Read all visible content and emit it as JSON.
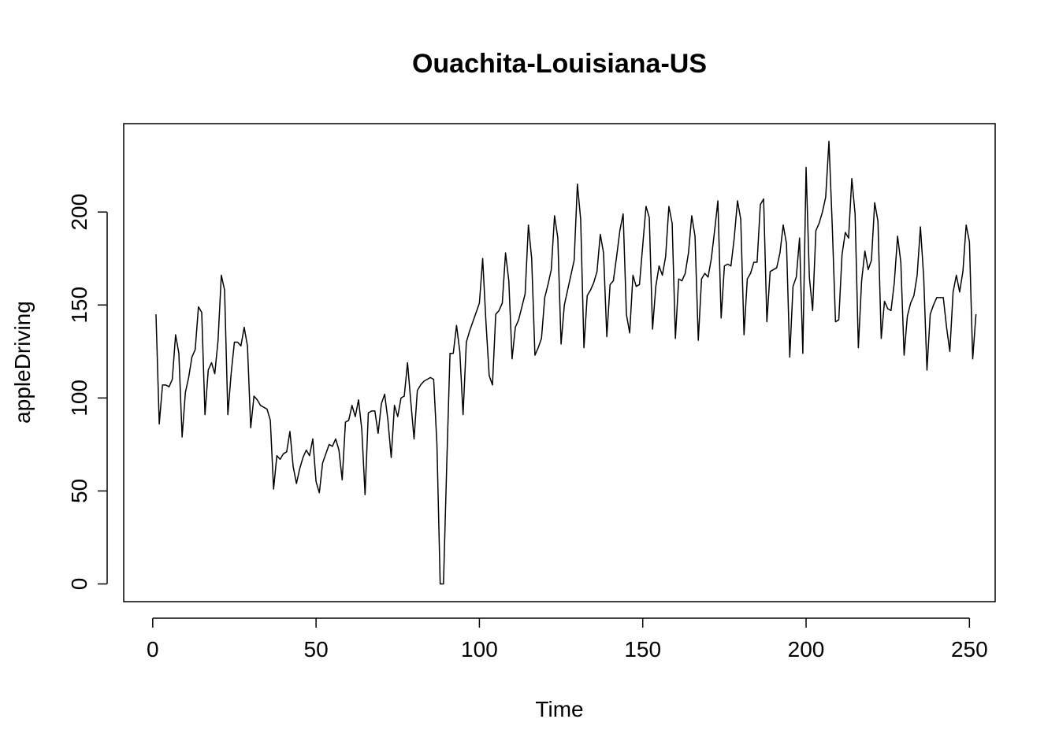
{
  "chart_data": {
    "type": "line",
    "title": "Ouachita-Louisiana-US",
    "xlabel": "Time",
    "ylabel": "appleDriving",
    "xlim": [
      1,
      248
    ],
    "ylim": [
      0,
      238
    ],
    "x_ticks": [
      "0",
      "50",
      "100",
      "150",
      "200",
      "250"
    ],
    "y_ticks": [
      "0",
      "50",
      "100",
      "150",
      "200"
    ],
    "grid": false,
    "legend": "none",
    "line_color": "#000000",
    "series": [
      {
        "values": [
          145,
          86,
          107,
          107,
          106,
          110,
          134,
          124,
          79,
          103,
          111,
          122,
          126,
          149,
          146,
          91,
          115,
          119,
          113,
          131,
          166,
          158,
          91,
          113,
          130,
          130,
          128,
          138,
          128,
          84,
          101,
          99,
          96,
          95,
          94,
          88,
          51,
          69,
          67,
          70,
          71,
          82,
          63,
          54,
          62,
          68,
          72,
          69,
          78,
          55,
          49,
          65,
          70,
          75,
          74,
          78,
          72,
          56,
          87,
          88,
          96,
          90,
          99,
          83,
          48,
          92,
          93,
          93,
          81,
          97,
          102,
          88,
          68,
          96,
          90,
          100,
          101,
          119,
          98,
          78,
          104,
          107,
          109,
          110,
          111,
          110,
          75,
          0,
          0,
          64,
          124,
          124,
          139,
          125,
          91,
          130,
          136,
          141,
          146,
          151,
          175,
          141,
          112,
          107,
          145,
          147,
          151,
          178,
          163,
          121,
          138,
          142,
          149,
          156,
          193,
          175,
          123,
          127,
          132,
          154,
          161,
          169,
          198,
          186,
          129,
          150,
          158,
          166,
          174,
          215,
          196,
          127,
          155,
          158,
          162,
          168,
          188,
          178,
          133,
          161,
          163,
          176,
          190,
          199,
          145,
          135,
          166,
          160,
          161,
          182,
          203,
          197,
          137,
          160,
          171,
          166,
          176,
          203,
          194,
          132,
          164,
          163,
          167,
          178,
          198,
          187,
          131,
          164,
          167,
          165,
          175,
          190,
          206,
          143,
          171,
          172,
          171,
          186,
          206,
          196,
          134,
          164,
          167,
          173,
          173,
          204,
          207,
          141,
          168,
          169,
          170,
          178,
          193,
          183,
          122,
          160,
          165,
          186,
          124,
          224,
          165,
          147,
          190,
          194,
          200,
          208,
          238,
          193,
          141,
          142,
          177,
          189,
          186,
          218,
          199,
          127,
          163,
          179,
          169,
          174,
          205,
          195,
          132,
          152,
          148,
          147,
          162,
          187,
          173,
          123,
          144,
          151,
          155,
          166,
          192,
          165,
          115,
          145,
          150,
          154,
          154,
          154,
          138,
          125,
          157,
          166,
          157,
          168,
          193,
          184,
          121,
          145
        ]
      }
    ]
  }
}
